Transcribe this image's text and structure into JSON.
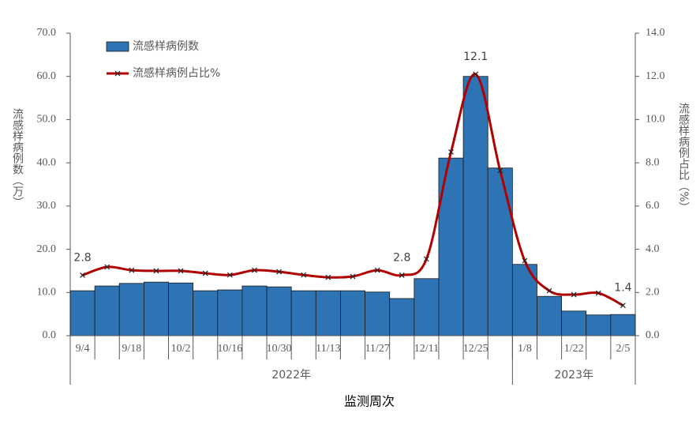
{
  "chart_data": {
    "type": "bar-line",
    "categories": [
      "9/4",
      null,
      "9/18",
      null,
      "10/2",
      null,
      "10/16",
      null,
      "10/30",
      null,
      "11/13",
      null,
      "11/27",
      null,
      "12/11",
      null,
      "12/25",
      null,
      "1/8",
      null,
      "1/22",
      null,
      "2/5"
    ],
    "groups": [
      {
        "label": "2022年",
        "count": 18
      },
      {
        "label": "2023年",
        "count": 5
      }
    ],
    "xlabel": "监测周次",
    "ylabel": "流感样病例数（万）",
    "y2label": "流感样病例占比（%）",
    "series": [
      {
        "name": "流感样病例数",
        "type": "bar",
        "color": "#2e74b5",
        "values": [
          10.4,
          11.5,
          12.1,
          12.4,
          12.2,
          10.4,
          10.6,
          11.5,
          11.3,
          10.4,
          10.4,
          10.4,
          10.1,
          8.6,
          13.2,
          41.1,
          60.0,
          38.8,
          16.5,
          9.1,
          5.7,
          4.8,
          4.9
        ]
      },
      {
        "name": "流感样病例占比%",
        "type": "line",
        "axis": "y2",
        "color": "#b00000",
        "values": [
          2.8,
          3.18,
          3.03,
          3.0,
          3.0,
          2.89,
          2.81,
          3.03,
          2.96,
          2.81,
          2.7,
          2.74,
          3.03,
          2.8,
          3.55,
          8.5,
          12.1,
          7.64,
          3.47,
          2.08,
          1.9,
          1.97,
          1.4
        ],
        "value_labels": [
          "2.8",
          null,
          null,
          null,
          null,
          null,
          null,
          null,
          null,
          null,
          null,
          null,
          null,
          "2.8",
          null,
          null,
          "12.1",
          null,
          null,
          null,
          null,
          null,
          "1.4"
        ]
      }
    ],
    "ylim": [
      0,
      70
    ],
    "yticks": [
      {
        "value": 0,
        "label": "0.0"
      },
      {
        "value": 10,
        "label": "10.0"
      },
      {
        "value": 20,
        "label": "20.0"
      },
      {
        "value": 30,
        "label": "30.0"
      },
      {
        "value": 40,
        "label": "40.0"
      },
      {
        "value": 50,
        "label": "50.0"
      },
      {
        "value": 60,
        "label": "60.0"
      },
      {
        "value": 70,
        "label": "70.0"
      }
    ],
    "y2lim": [
      0,
      14
    ],
    "y2ticks": [
      {
        "value": 0,
        "label": "0.0"
      },
      {
        "value": 2,
        "label": "2.0"
      },
      {
        "value": 4,
        "label": "4.0"
      },
      {
        "value": 6,
        "label": "6.0"
      },
      {
        "value": 8,
        "label": "8.0"
      },
      {
        "value": 10,
        "label": "10.0"
      },
      {
        "value": 12,
        "label": "12.0"
      },
      {
        "value": 14,
        "label": "14.0"
      }
    ],
    "grid": false
  }
}
